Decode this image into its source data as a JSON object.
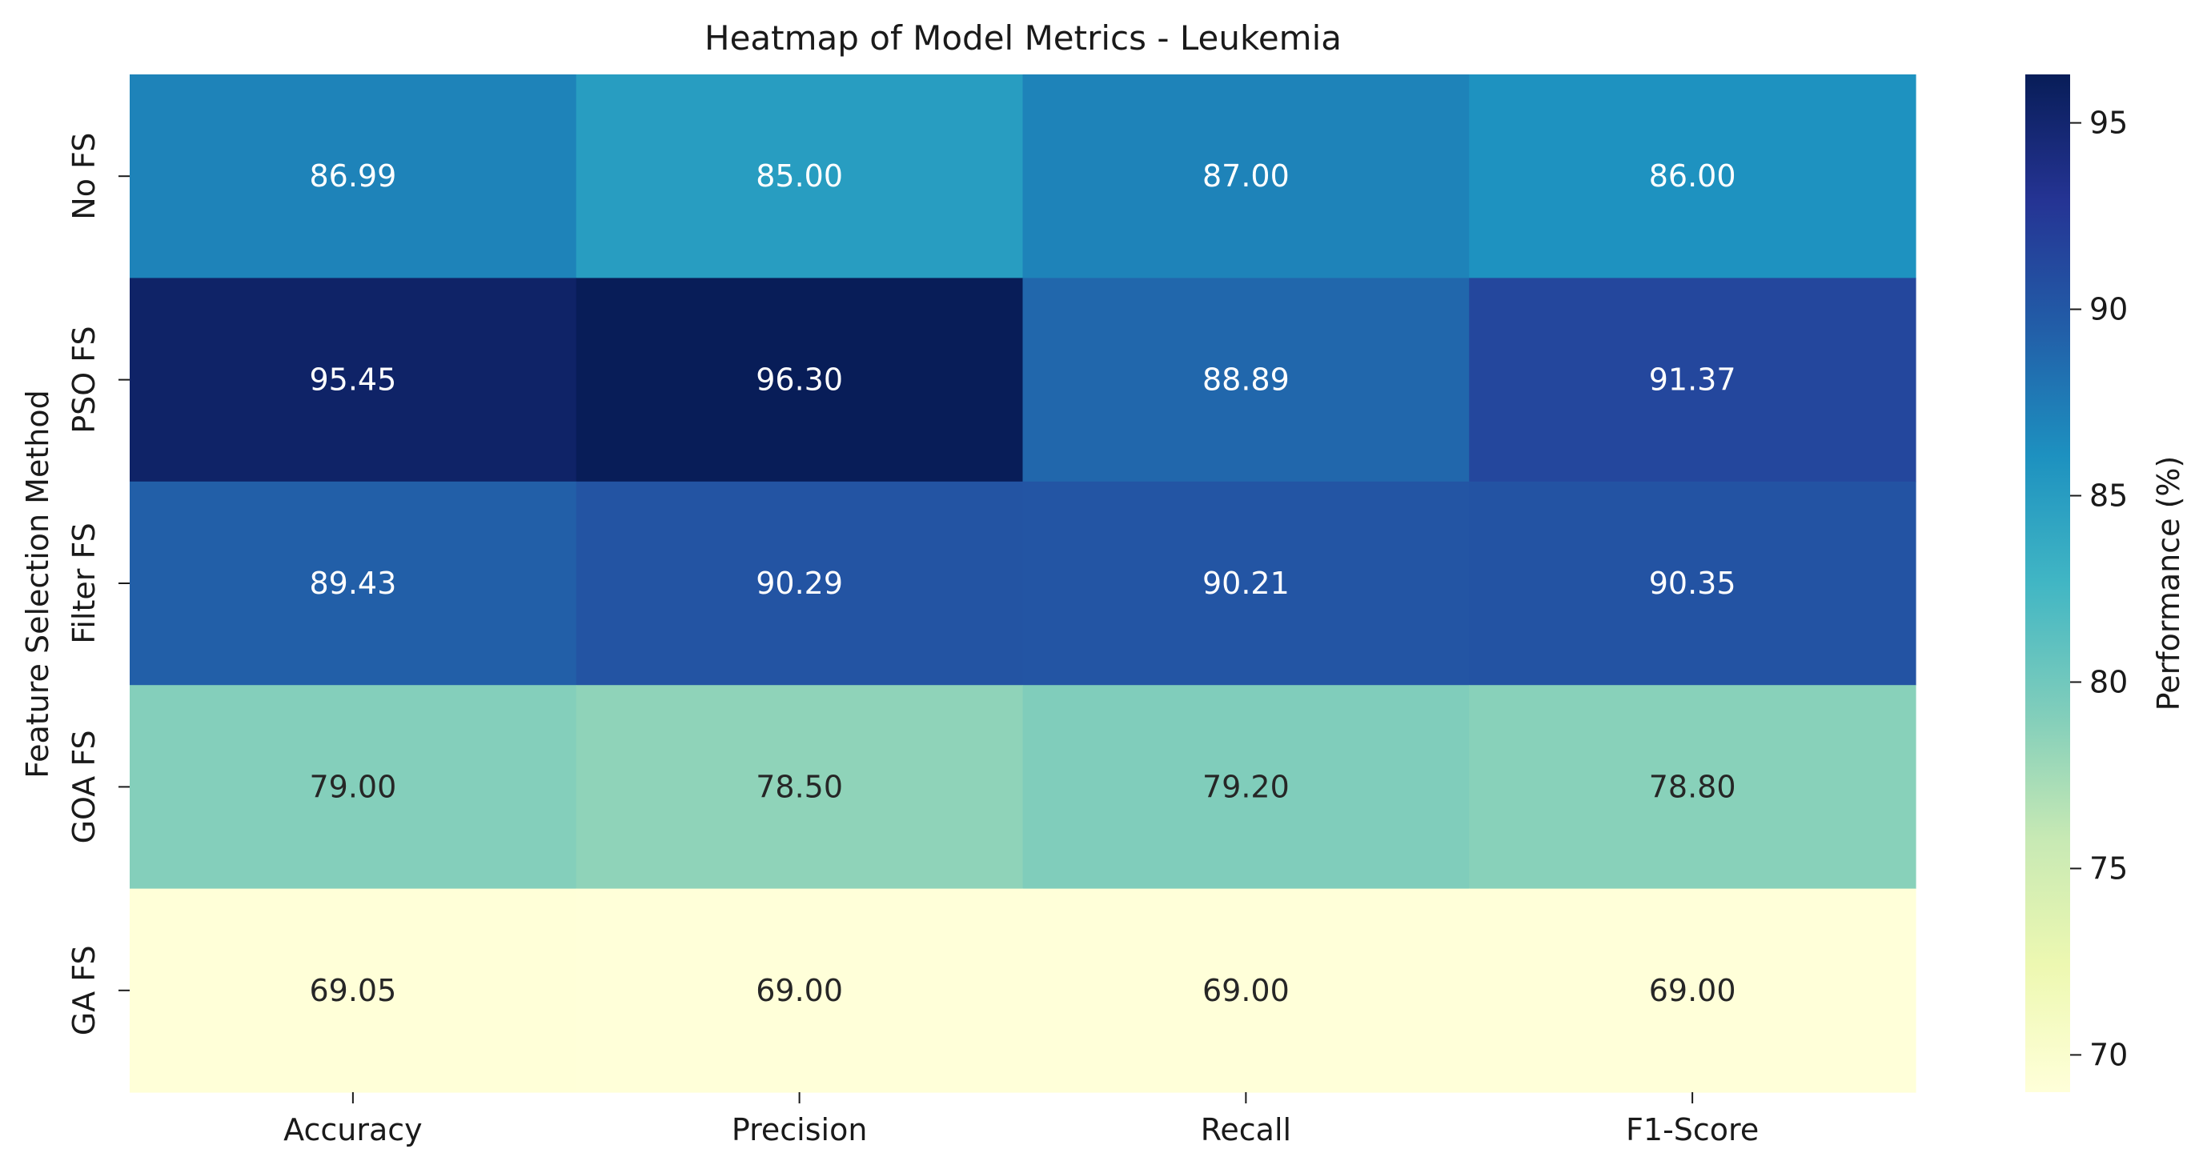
{
  "chart_data": {
    "type": "heatmap",
    "title": "Heatmap of Model Metrics - Leukemia",
    "xlabel": "",
    "ylabel": "Feature Selection Method",
    "columns": [
      "Accuracy",
      "Precision",
      "Recall",
      "F1-Score"
    ],
    "rows": [
      "No FS",
      "PSO FS",
      "Filter FS",
      "GOA FS",
      "GA FS"
    ],
    "values": [
      [
        86.99,
        85.0,
        87.0,
        86.0
      ],
      [
        95.45,
        96.3,
        88.89,
        91.37
      ],
      [
        89.43,
        90.29,
        90.21,
        90.35
      ],
      [
        79.0,
        78.5,
        79.2,
        78.8
      ],
      [
        69.05,
        69.0,
        69.0,
        69.0
      ]
    ],
    "value_format": "2 decimals",
    "colormap": "YlGnBu",
    "colorbar": {
      "label": "Performance (%)",
      "range": [
        69.0,
        96.3
      ],
      "ticks": [
        70,
        75,
        80,
        85,
        90,
        95
      ]
    },
    "grid": false,
    "legend": "colorbar right"
  }
}
